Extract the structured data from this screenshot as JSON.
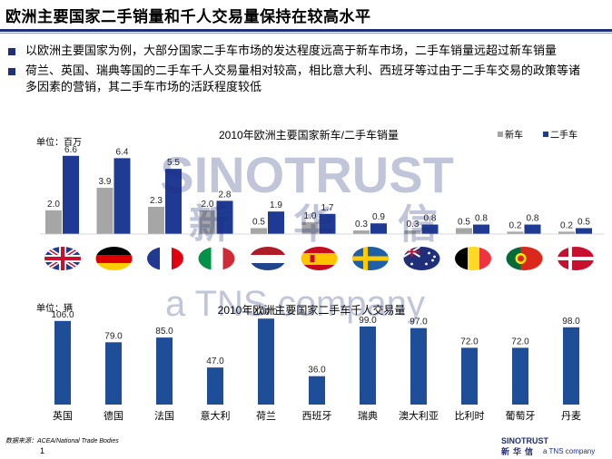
{
  "header": {
    "title": "欧洲主要国家二手销量和千人交易量保持在较高水平"
  },
  "bullets": [
    "以欧洲主要国家为例，大部分国家二手车市场的发达程度远高于新车市场，二手车销量远超过新车销量",
    "荷兰、英国、瑞典等国的二手车千人交易量相对较高，相比意大利、西班牙等过由于二手车交易的政策等诸多因素的营销，其二手车市场的活跃程度较低"
  ],
  "watermark": {
    "line1": "SINOTRUST",
    "line2": [
      "新",
      "华",
      "信"
    ],
    "line3": "a TNS company"
  },
  "footer": {
    "source": "数据来源：ACEA/National Trade Bodies",
    "page": "1"
  },
  "logo": {
    "line1": "SINOTRUST",
    "line2": "新华信",
    "line3": "a TNS company"
  },
  "colors": {
    "new": "#a6a6a6",
    "used": "#1f3a93",
    "volume": "#1f4e99",
    "title_rule": "#1f2f7a"
  },
  "flags": [
    "uk",
    "germany",
    "france",
    "italy",
    "netherlands",
    "spain",
    "sweden",
    "australia",
    "belgium",
    "portugal",
    "denmark"
  ],
  "chart_data": [
    {
      "type": "bar",
      "title": "2010年欧洲主要国家新车/二手车销量",
      "unit_label": "单位：百万",
      "legend": [
        "新车",
        "二手车"
      ],
      "legend_position": "top-right",
      "series": [
        {
          "name": "新车",
          "values": [
            2.0,
            3.9,
            2.3,
            2.0,
            0.5,
            1.0,
            0.3,
            0.3,
            0.5,
            0.2,
            0.2
          ]
        },
        {
          "name": "二手车",
          "values": [
            6.6,
            6.4,
            5.5,
            2.8,
            1.9,
            1.7,
            0.9,
            0.8,
            0.8,
            0.8,
            0.5
          ]
        }
      ],
      "ylim": [
        0,
        7.5
      ],
      "grid": false
    },
    {
      "type": "bar",
      "title": "2010年欧洲主要国家二手车千人交易量",
      "unit_label": "单位：辆",
      "categories": [
        "英国",
        "德国",
        "法国",
        "意大利",
        "荷兰",
        "西班牙",
        "瑞典",
        "澳大利亚",
        "比利时",
        "葡萄牙",
        "丹麦"
      ],
      "values": [
        106.0,
        79.0,
        85.0,
        47.0,
        109.0,
        36.0,
        99.0,
        97.0,
        72.0,
        72.0,
        98.0
      ],
      "ylim": [
        0,
        115
      ],
      "grid": false
    }
  ]
}
